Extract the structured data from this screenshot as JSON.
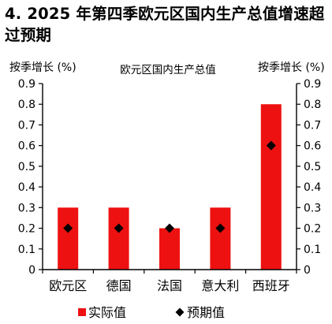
{
  "title": "4. 2025 年第四季欧元区国内生产总值增速超过预期",
  "chart_data": {
    "type": "bar",
    "title": "欧元区国内生产总值",
    "ylabel_left": "按季增长 (%)",
    "ylabel_right": "按季增长 (%)",
    "categories": [
      "欧元区",
      "德国",
      "法国",
      "意大利",
      "西班牙"
    ],
    "ylim": [
      0,
      0.9
    ],
    "yticks": [
      "0",
      "0.1",
      "0.2",
      "0.3",
      "0.4",
      "0.5",
      "0.6",
      "0.7",
      "0.8",
      "0.9"
    ],
    "series": [
      {
        "name": "实际值",
        "kind": "bar",
        "color": "#ee1111",
        "values": [
          0.3,
          0.3,
          0.2,
          0.3,
          0.8
        ]
      },
      {
        "name": "预期值",
        "kind": "marker",
        "marker": "diamond",
        "color": "#000000",
        "values": [
          0.2,
          0.2,
          0.2,
          0.2,
          0.6
        ]
      }
    ],
    "legend": "bottom",
    "grid": false
  }
}
